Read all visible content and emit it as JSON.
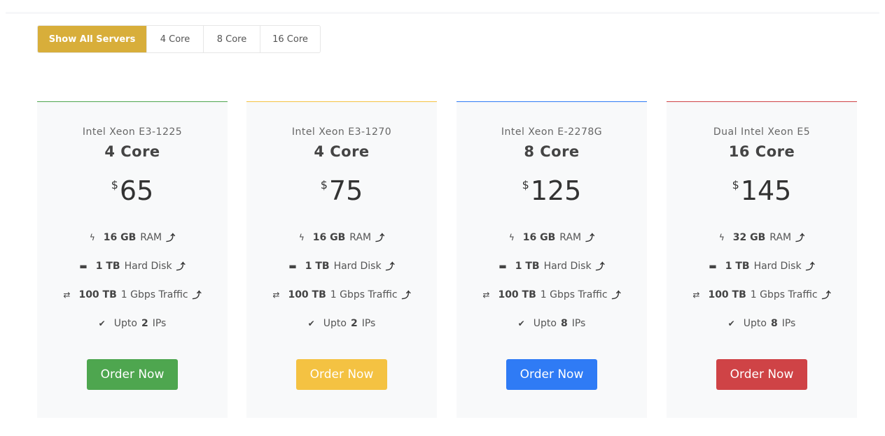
{
  "filters": {
    "all": "Show All Servers",
    "c4": "4 Core",
    "c8": "8 Core",
    "c16": "16 Core",
    "active_color": "#d8ae3a"
  },
  "currency": "$",
  "plans": [
    {
      "cpu": "Intel Xeon E3-1225",
      "cores": "4 Core",
      "price": "65",
      "ram": "16 GB",
      "ram_label": "RAM",
      "disk": "1 TB",
      "disk_label": "Hard Disk",
      "traffic": "100 TB",
      "traffic_label": "1 Gbps Traffic",
      "ips_prefix": "Upto",
      "ips": "2",
      "ips_label": "IPs",
      "button": "Order Now",
      "color": "#4ea64f"
    },
    {
      "cpu": "Intel Xeon E3-1270",
      "cores": "4 Core",
      "price": "75",
      "ram": "16 GB",
      "ram_label": "RAM",
      "disk": "1 TB",
      "disk_label": "Hard Disk",
      "traffic": "100 TB",
      "traffic_label": "1 Gbps Traffic",
      "ips_prefix": "Upto",
      "ips": "2",
      "ips_label": "IPs",
      "button": "Order Now",
      "color": "#f4c242"
    },
    {
      "cpu": "Intel Xeon E-2278G",
      "cores": "8 Core",
      "price": "125",
      "ram": "16 GB",
      "ram_label": "RAM",
      "disk": "1 TB",
      "disk_label": "Hard Disk",
      "traffic": "100 TB",
      "traffic_label": "1 Gbps Traffic",
      "ips_prefix": "Upto",
      "ips": "8",
      "ips_label": "IPs",
      "button": "Order Now",
      "color": "#2f7bf5"
    },
    {
      "cpu": "Dual Intel Xeon E5",
      "cores": "16 Core",
      "price": "145",
      "ram": "32 GB",
      "ram_label": "RAM",
      "disk": "1 TB",
      "disk_label": "Hard Disk",
      "traffic": "100 TB",
      "traffic_label": "1 Gbps Traffic",
      "ips_prefix": "Upto",
      "ips": "8",
      "ips_label": "IPs",
      "button": "Order Now",
      "color": "#cf4346"
    }
  ]
}
